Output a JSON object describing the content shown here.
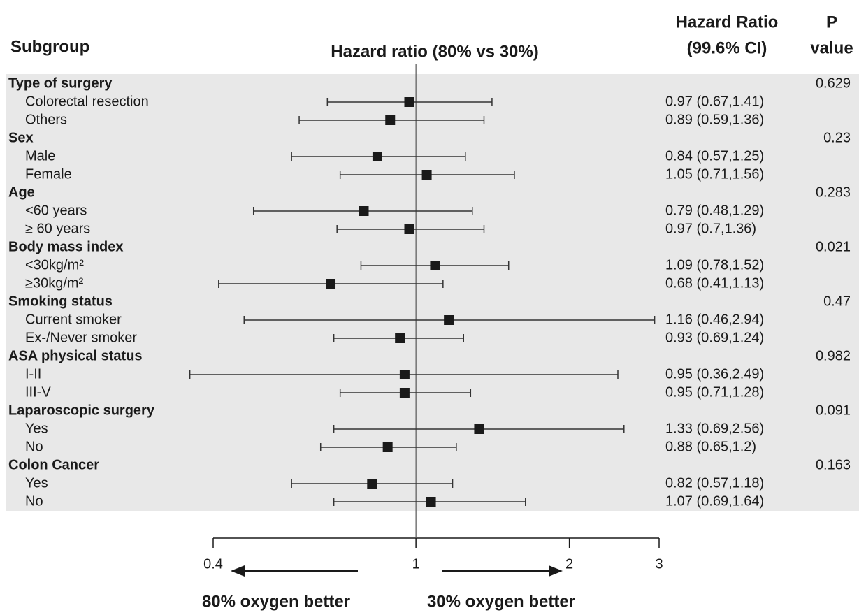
{
  "chart_data": {
    "type": "forest",
    "title": "Hazard ratio (80% vs 30%)",
    "subgroup_header": "Subgroup",
    "hr_header": [
      "Hazard Ratio",
      "(99.6% CI)"
    ],
    "p_header": [
      "P",
      "value"
    ],
    "log_scale": true,
    "xlim": [
      0.4,
      3
    ],
    "xticks": [
      0.4,
      1,
      2,
      3
    ],
    "reference_line": 1,
    "color": "#1a1a1a",
    "annotations": [
      "80% oxygen better",
      "30% oxygen better"
    ],
    "groups": [
      {
        "name": "Type of surgery",
        "p_value": 0.629,
        "categories": [
          "Colorectal resection",
          "Others"
        ],
        "values": [
          0.97,
          0.89
        ],
        "lower": [
          0.67,
          0.59
        ],
        "upper": [
          1.41,
          1.36
        ],
        "value_labels": [
          "0.97 (0.67,1.41)",
          "0.89 (0.59,1.36)"
        ]
      },
      {
        "name": "Sex",
        "p_value": 0.23,
        "categories": [
          "Male",
          "Female"
        ],
        "values": [
          0.84,
          1.05
        ],
        "lower": [
          0.57,
          0.71
        ],
        "upper": [
          1.25,
          1.56
        ],
        "value_labels": [
          "0.84 (0.57,1.25)",
          "1.05 (0.71,1.56)"
        ]
      },
      {
        "name": "Age",
        "p_value": 0.283,
        "categories": [
          "<60 years",
          "≥ 60 years"
        ],
        "values": [
          0.79,
          0.97
        ],
        "lower": [
          0.48,
          0.7
        ],
        "upper": [
          1.29,
          1.36
        ],
        "value_labels": [
          "0.79 (0.48,1.29)",
          "0.97 (0.7,1.36)"
        ]
      },
      {
        "name": "Body mass index",
        "p_value": 0.021,
        "categories": [
          "<30kg/m²",
          "≥30kg/m²"
        ],
        "values": [
          1.09,
          0.68
        ],
        "lower": [
          0.78,
          0.41
        ],
        "upper": [
          1.52,
          1.13
        ],
        "value_labels": [
          "1.09 (0.78,1.52)",
          "0.68 (0.41,1.13)"
        ]
      },
      {
        "name": "Smoking status",
        "p_value": 0.47,
        "categories": [
          "Current smoker",
          "Ex-/Never smoker"
        ],
        "values": [
          1.16,
          0.93
        ],
        "lower": [
          0.46,
          0.69
        ],
        "upper": [
          2.94,
          1.24
        ],
        "value_labels": [
          "1.16 (0.46,2.94)",
          "0.93 (0.69,1.24)"
        ]
      },
      {
        "name": "ASA physical status",
        "p_value": 0.982,
        "categories": [
          "I-II",
          "III-V"
        ],
        "values": [
          0.95,
          0.95
        ],
        "lower": [
          0.36,
          0.71
        ],
        "upper": [
          2.49,
          1.28
        ],
        "value_labels": [
          "0.95 (0.36,2.49)",
          "0.95 (0.71,1.28)"
        ]
      },
      {
        "name": "Laparoscopic surgery",
        "p_value": 0.091,
        "categories": [
          "Yes",
          "No"
        ],
        "values": [
          1.33,
          0.88
        ],
        "lower": [
          0.69,
          0.65
        ],
        "upper": [
          2.56,
          1.2
        ],
        "value_labels": [
          "1.33 (0.69,2.56)",
          "0.88 (0.65,1.2)"
        ]
      },
      {
        "name": "Colon Cancer",
        "p_value": 0.163,
        "categories": [
          "Yes",
          "No"
        ],
        "values": [
          0.82,
          1.07
        ],
        "lower": [
          0.57,
          0.69
        ],
        "upper": [
          1.18,
          1.64
        ],
        "value_labels": [
          "0.82 (0.57,1.18)",
          "1.07 (0.69,1.64)"
        ]
      }
    ]
  }
}
